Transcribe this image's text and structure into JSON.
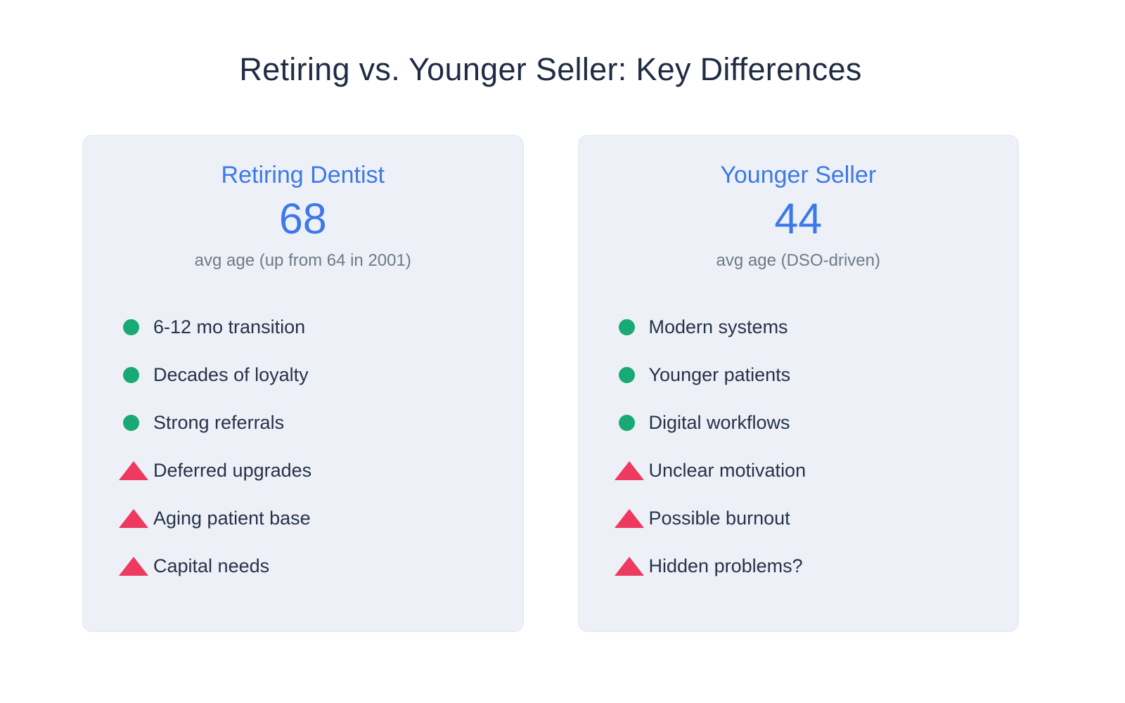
{
  "page": {
    "title": "Retiring vs. Younger Seller: Key Differences"
  },
  "colors": {
    "accent_blue": "#3d78ea",
    "positive_green": "#18a974",
    "negative_red": "#ed3a5e",
    "card_background": "#edf1f7",
    "card_border": "#e1e7ef",
    "title_text": "#212c44",
    "body_text": "#253249",
    "muted_text": "#6d7a89"
  },
  "icons": {
    "pro_bullet": "circle-bullet",
    "con_bullet": "warning-triangle"
  },
  "cards": [
    {
      "title": "Retiring Dentist",
      "value": "68",
      "subtitle": "avg age (up from 64 in 2001)",
      "pros": [
        "6-12 mo transition",
        "Decades of loyalty",
        "Strong referrals"
      ],
      "cons": [
        "Deferred upgrades",
        "Aging patient base",
        "Capital needs"
      ]
    },
    {
      "title": "Younger Seller",
      "value": "44",
      "subtitle": "avg age (DSO-driven)",
      "pros": [
        "Modern systems",
        "Younger patients",
        "Digital workflows"
      ],
      "cons": [
        "Unclear motivation",
        "Possible burnout",
        "Hidden problems?"
      ]
    }
  ],
  "chart_data": {
    "type": "table",
    "title": "Retiring vs. Younger Seller: Key Differences",
    "categories": [
      "Retiring Dentist",
      "Younger Seller"
    ],
    "values": [
      68,
      44
    ],
    "value_labels": [
      "avg age (up from 64 in 2001)",
      "avg age (DSO-driven)"
    ],
    "series": [
      {
        "name": "Retiring Dentist",
        "avg_age": 68,
        "positives": [
          "6-12 mo transition",
          "Decades of loyalty",
          "Strong referrals"
        ],
        "negatives": [
          "Deferred upgrades",
          "Aging patient base",
          "Capital needs"
        ]
      },
      {
        "name": "Younger Seller",
        "avg_age": 44,
        "positives": [
          "Modern systems",
          "Younger patients",
          "Digital workflows"
        ],
        "negatives": [
          "Unclear motivation",
          "Possible burnout",
          "Hidden problems?"
        ]
      }
    ],
    "legend": "none",
    "grid": false
  }
}
